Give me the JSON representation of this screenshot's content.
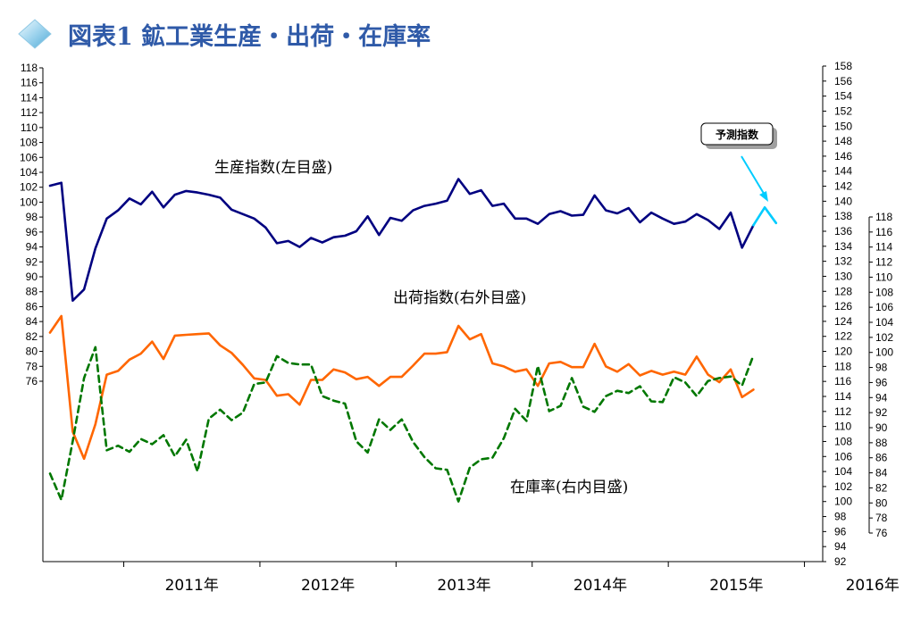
{
  "title": "図表1 鉱工業生産・出荷・在庫率",
  "annotation": "予測指数",
  "colors": {
    "production": "#000080",
    "shipments": "#ff6600",
    "inventory": "#007700",
    "forecast": "#00ccff",
    "title": "#2f5aa8"
  },
  "chart_data": {
    "type": "line",
    "x_labels": [
      "2011年",
      "2012年",
      "2013年",
      "2014年",
      "2015年",
      "2016年"
    ],
    "x_range": [
      "2010-06",
      "2016-04"
    ],
    "axes": {
      "left": {
        "min": 76,
        "max": 118,
        "step": 2
      },
      "outer_right": {
        "min": 92,
        "max": 158,
        "step": 2
      },
      "inner_right": {
        "min": 76,
        "max": 118,
        "step": 2
      }
    },
    "series": [
      {
        "name": "生産指数(左目盛)",
        "axis": "left",
        "start": "2010-06",
        "values": [
          102.2,
          102.6,
          86.8,
          88.3,
          93.8,
          97.8,
          98.9,
          100.5,
          99.7,
          101.4,
          99.3,
          101.0,
          101.5,
          101.3,
          101.0,
          100.6,
          99.0,
          98.4,
          97.8,
          96.6,
          94.5,
          94.8,
          94.0,
          95.2,
          94.6,
          95.3,
          95.5,
          96.1,
          98.1,
          95.6,
          97.9,
          97.5,
          98.9,
          99.5,
          99.8,
          100.2,
          103.1,
          101.1,
          101.6,
          99.5,
          99.8,
          97.8,
          97.8,
          97.1,
          98.4,
          98.8,
          98.2,
          98.3,
          100.9,
          98.9,
          98.5,
          99.2,
          97.3,
          98.6,
          97.8,
          97.1,
          97.4,
          98.4,
          97.6,
          96.4,
          98.6,
          93.9,
          96.9
        ]
      },
      {
        "name": "予測指数",
        "axis": "left",
        "start": "2015-08",
        "values": [
          96.9,
          99.3,
          97.2
        ]
      },
      {
        "name": "出荷指数(右外目盛)",
        "axis": "outer_right",
        "start": "2010-06",
        "values": [
          122.5,
          124.7,
          109.3,
          105.7,
          110.3,
          116.9,
          117.4,
          118.9,
          119.7,
          121.3,
          119.0,
          122.1,
          122.2,
          122.3,
          122.4,
          120.8,
          119.8,
          118.2,
          116.4,
          116.2,
          114.1,
          114.3,
          112.9,
          116.2,
          116.2,
          117.6,
          117.2,
          116.3,
          116.6,
          115.4,
          116.6,
          116.6,
          118.1,
          119.7,
          119.7,
          119.9,
          123.4,
          121.6,
          122.3,
          118.4,
          118.0,
          117.3,
          117.6,
          115.4,
          118.4,
          118.6,
          117.9,
          117.9,
          121.0,
          118.0,
          117.3,
          118.3,
          116.8,
          117.4,
          116.9,
          117.3,
          116.9,
          119.3,
          116.9,
          115.9,
          117.6,
          113.9,
          114.9
        ]
      },
      {
        "name": "在庫率(右内目盛)",
        "axis": "inner_right",
        "start": "2010-06",
        "values": [
          83.9,
          80.4,
          88.2,
          96.6,
          100.7,
          87.0,
          87.6,
          86.8,
          88.5,
          87.8,
          89.0,
          86.2,
          88.4,
          84.2,
          91.2,
          92.4,
          91.0,
          92.0,
          95.8,
          96.0,
          99.5,
          98.6,
          98.4,
          98.4,
          94.2,
          93.6,
          93.2,
          88.2,
          86.7,
          91.1,
          89.7,
          91.1,
          88.1,
          86.1,
          84.6,
          84.4,
          80.2,
          84.7,
          85.8,
          86.0,
          88.6,
          92.5,
          90.9,
          98.2,
          92.2,
          92.9,
          96.6,
          92.8,
          92.1,
          94.2,
          94.9,
          94.6,
          95.5,
          93.5,
          93.4,
          96.7,
          96.0,
          94.2,
          96.2,
          96.6,
          96.8,
          95.6,
          99.6
        ]
      }
    ]
  }
}
